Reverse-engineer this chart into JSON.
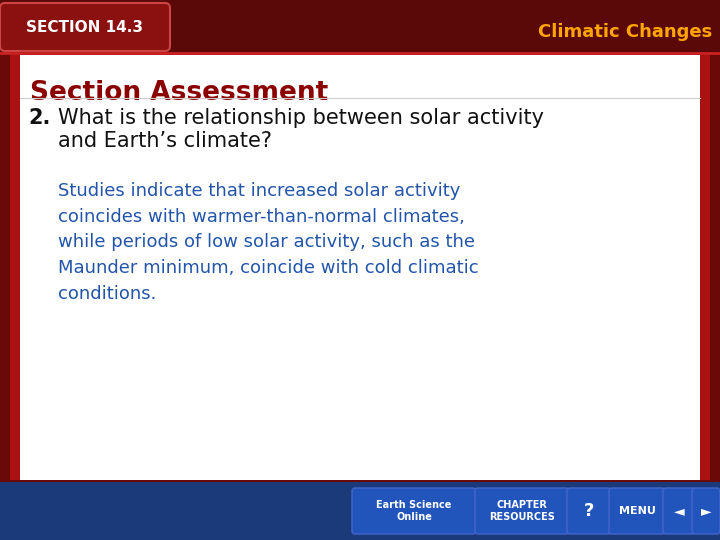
{
  "bg_dark": "#6B0808",
  "content_bg": "#FFFFFF",
  "border_color": "#CC2222",
  "section_label": "Sᴇᴄᴛᴉᴏɴ 14.3",
  "section_label_color": "#FFFFFF",
  "section_tab_bg": "#8B1010",
  "header_title": "Climatic Changes",
  "header_title_color": "#FFA500",
  "slide_title": "Section Assessment",
  "slide_title_color": "#8B0000",
  "question_number": "2.",
  "question_text": "What is the relationship between solar activity\nand Earth’s climate?",
  "question_color": "#111111",
  "answer_text": "Studies indicate that increased solar activity\ncoincides with warmer-than-normal climates,\nwhile periods of low solar activity, such as the\nMaunder minimum, coincide with cold climatic\nconditions.",
  "answer_color": "#2255AA",
  "bottom_bar_color": "#1A3A7A",
  "nav_button_color": "#2244AA"
}
